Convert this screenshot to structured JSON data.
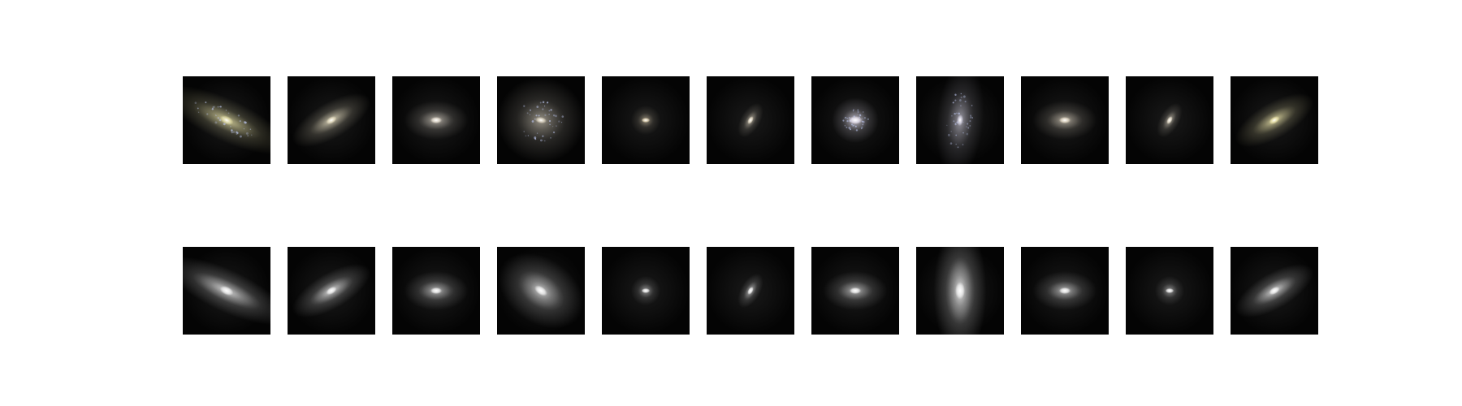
{
  "figure": {
    "rows": [
      {
        "name": "top-row",
        "style": "color",
        "panels": [
          {
            "name": "galaxy-panel-1",
            "morphology": "edge-on-disk",
            "hue": "#e8e2a8",
            "knots": true
          },
          {
            "name": "galaxy-panel-2",
            "morphology": "inclined-disk",
            "hue": "#efe6c8",
            "knots": false
          },
          {
            "name": "galaxy-panel-3",
            "morphology": "elliptical",
            "hue": "#f2eadc",
            "knots": false
          },
          {
            "name": "galaxy-panel-4",
            "morphology": "face-on-spiral",
            "hue": "#e9e0cc",
            "knots": true
          },
          {
            "name": "galaxy-panel-5",
            "morphology": "compact",
            "hue": "#f6e6c4",
            "knots": false
          },
          {
            "name": "galaxy-panel-6",
            "morphology": "small-inclined",
            "hue": "#f2e8d2",
            "knots": false
          },
          {
            "name": "galaxy-panel-7",
            "morphology": "compact-bright",
            "hue": "#ece6f4",
            "knots": true
          },
          {
            "name": "galaxy-panel-8",
            "morphology": "vertical-clumpy",
            "hue": "#d9d6e6",
            "knots": true
          },
          {
            "name": "galaxy-panel-9",
            "morphology": "elliptical",
            "hue": "#f1e6d2",
            "knots": false
          },
          {
            "name": "galaxy-panel-10",
            "morphology": "small-inclined",
            "hue": "#f3ead6",
            "knots": false
          },
          {
            "name": "galaxy-panel-11",
            "morphology": "inclined-disk",
            "hue": "#f4ecb0",
            "knots": false
          }
        ]
      },
      {
        "name": "bottom-row",
        "style": "grayscale",
        "panels": [
          {
            "name": "smooth-galaxy-panel-1",
            "morphology": "edge-on-disk",
            "hue": "#f4f4f4"
          },
          {
            "name": "smooth-galaxy-panel-2",
            "morphology": "inclined-disk",
            "hue": "#f6f6f6"
          },
          {
            "name": "smooth-galaxy-panel-3",
            "morphology": "elliptical",
            "hue": "#f8f8f8"
          },
          {
            "name": "smooth-galaxy-panel-4",
            "morphology": "inclined-diffuse",
            "hue": "#f7f7f7"
          },
          {
            "name": "smooth-galaxy-panel-5",
            "morphology": "compact",
            "hue": "#f8f8f8"
          },
          {
            "name": "smooth-galaxy-panel-6",
            "morphology": "small-inclined",
            "hue": "#f8f8f8"
          },
          {
            "name": "smooth-galaxy-panel-7",
            "morphology": "elliptical",
            "hue": "#f8f8f8"
          },
          {
            "name": "smooth-galaxy-panel-8",
            "morphology": "vertical-elongated",
            "hue": "#f6f6f6"
          },
          {
            "name": "smooth-galaxy-panel-9",
            "morphology": "elliptical",
            "hue": "#f8f8f8"
          },
          {
            "name": "smooth-galaxy-panel-10",
            "morphology": "compact",
            "hue": "#f8f8f8"
          },
          {
            "name": "smooth-galaxy-panel-11",
            "morphology": "inclined-disk",
            "hue": "#f8f8f8"
          }
        ]
      }
    ]
  }
}
